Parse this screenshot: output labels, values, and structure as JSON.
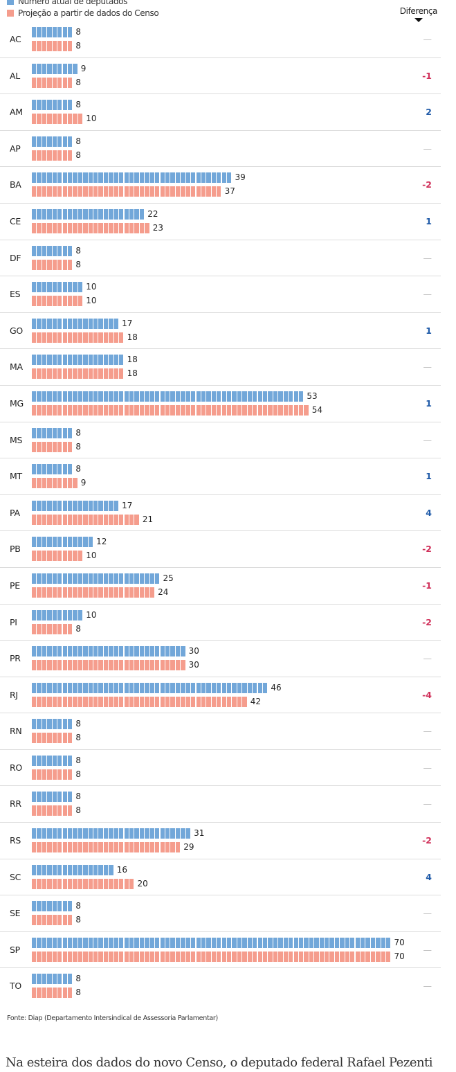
{
  "chart_data": {
    "type": "bar",
    "orientation": "horizontal",
    "style": "unit-blocks",
    "legend": [
      {
        "label": "Número atual de deputados",
        "color": "#72a7d9"
      },
      {
        "label": "Projeção a partir de dados do Censo",
        "color": "#f59d8d"
      }
    ],
    "diff_header": "Diferença",
    "categories": [
      "AC",
      "AL",
      "AM",
      "AP",
      "BA",
      "CE",
      "DF",
      "ES",
      "GO",
      "MA",
      "MG",
      "MS",
      "MT",
      "PA",
      "PB",
      "PE",
      "PI",
      "PR",
      "RJ",
      "RN",
      "RO",
      "RR",
      "RS",
      "SC",
      "SE",
      "SP",
      "TO"
    ],
    "series": [
      {
        "name": "Número atual de deputados",
        "values": [
          8,
          9,
          8,
          8,
          39,
          22,
          8,
          10,
          17,
          18,
          53,
          8,
          8,
          17,
          12,
          25,
          10,
          30,
          46,
          8,
          8,
          8,
          31,
          16,
          8,
          70,
          8
        ]
      },
      {
        "name": "Projeção a partir de dados do Censo",
        "values": [
          8,
          8,
          10,
          8,
          37,
          23,
          8,
          10,
          18,
          18,
          54,
          8,
          9,
          21,
          10,
          24,
          8,
          30,
          42,
          8,
          8,
          8,
          29,
          20,
          8,
          70,
          8
        ]
      }
    ],
    "differences": [
      "—",
      "-1",
      "2",
      "—",
      "-2",
      "1",
      "—",
      "—",
      "1",
      "—",
      "1",
      "—",
      "1",
      "4",
      "-2",
      "-1",
      "-2",
      "—",
      "-4",
      "—",
      "—",
      "—",
      "-2",
      "4",
      "—",
      "—",
      "—"
    ],
    "colors": {
      "positive": "#1f5aa8",
      "negative": "#d0305a",
      "none": "#bbbbbb"
    }
  },
  "source": "Fonte: Diap (Departamento Intersindical de Assessoria Parlamentar)",
  "article_text": "Na esteira dos dados do novo Censo, o deputado federal Rafael Pezenti"
}
